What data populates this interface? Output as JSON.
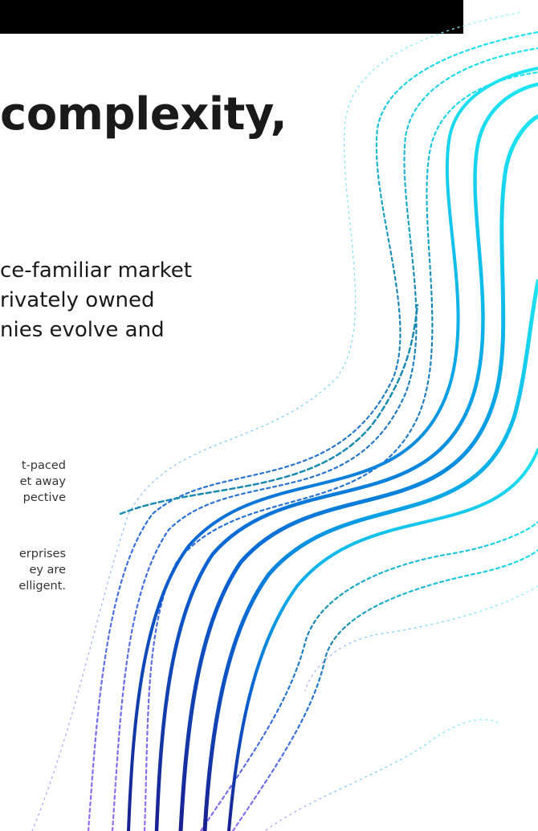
{
  "header": {
    "headline": "complexity,"
  },
  "lead_lines": [
    "ce-familiar market",
    "rivately owned",
    "nies evolve and"
  ],
  "body_paragraph_1": [
    "t-paced",
    "et away",
    "pective"
  ],
  "body_paragraph_2": [
    "erprises",
    "ey are",
    "elligent."
  ],
  "colors": {
    "top_bar": "#000000",
    "wave_cyan": "#1ee4f0",
    "wave_blue": "#0a9fe0",
    "wave_navy": "#1a1f8f",
    "wave_purple": "#9b6cf0",
    "wave_teal": "#1a8ab0"
  }
}
